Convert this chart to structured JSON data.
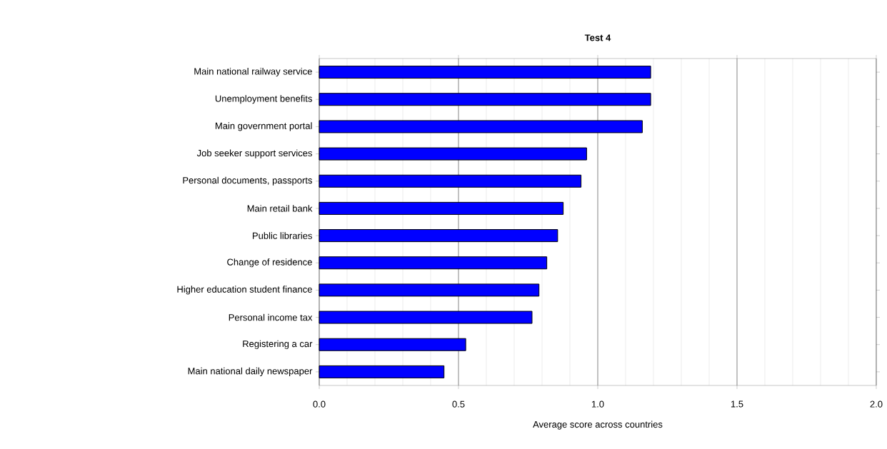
{
  "chart_data": {
    "type": "bar",
    "orientation": "horizontal",
    "title": "Test 4",
    "xlabel": "Average score across countries",
    "categories": [
      "Main national railway service",
      "Unemployment benefits",
      "Main government portal",
      "Job seeker support services",
      "Personal documents, passports",
      "Main retail bank",
      "Public libraries",
      "Change of residence",
      "Higher education student finance",
      "Personal income tax",
      "Registering a car",
      "Main national daily newspaper"
    ],
    "values": [
      1.19,
      1.19,
      1.16,
      0.96,
      0.94,
      0.876,
      0.856,
      0.817,
      0.789,
      0.764,
      0.526,
      0.448
    ],
    "color": "#0000ff",
    "xlim": [
      0,
      2
    ],
    "xticks": [
      {
        "value": 0,
        "label": "0.0"
      },
      {
        "value": 0.5,
        "label": "0.5"
      },
      {
        "value": 1,
        "label": "1.0"
      },
      {
        "value": 1.5,
        "label": "1.5"
      },
      {
        "value": 2,
        "label": "2.0"
      }
    ],
    "grid": "x"
  }
}
